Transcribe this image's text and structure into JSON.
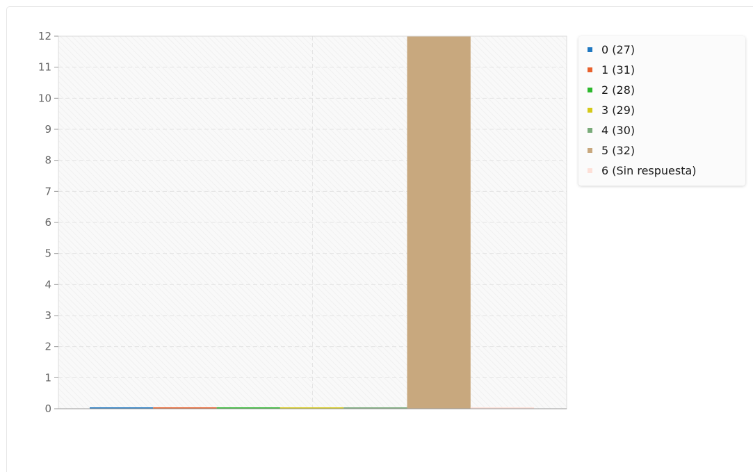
{
  "chart_data": {
    "type": "bar",
    "categories": [
      "0 (27)",
      "1 (31)",
      "2 (28)",
      "3 (29)",
      "4 (30)",
      "5 (32)",
      "6 (Sin respuesta)"
    ],
    "values": [
      0,
      0,
      0,
      0,
      0,
      12,
      0
    ],
    "colors": [
      "#1f78c1",
      "#e8612c",
      "#2db82d",
      "#d4c919",
      "#7aab7a",
      "#c8a87e",
      "#fde0d8"
    ],
    "title": "",
    "xlabel": "",
    "ylabel": "",
    "ylim": [
      0,
      12
    ],
    "yticks": [
      "0",
      "1",
      "2",
      "3",
      "4",
      "5",
      "6",
      "7",
      "8",
      "9",
      "10",
      "11",
      "12"
    ],
    "grid": true,
    "legend_position": "right"
  }
}
